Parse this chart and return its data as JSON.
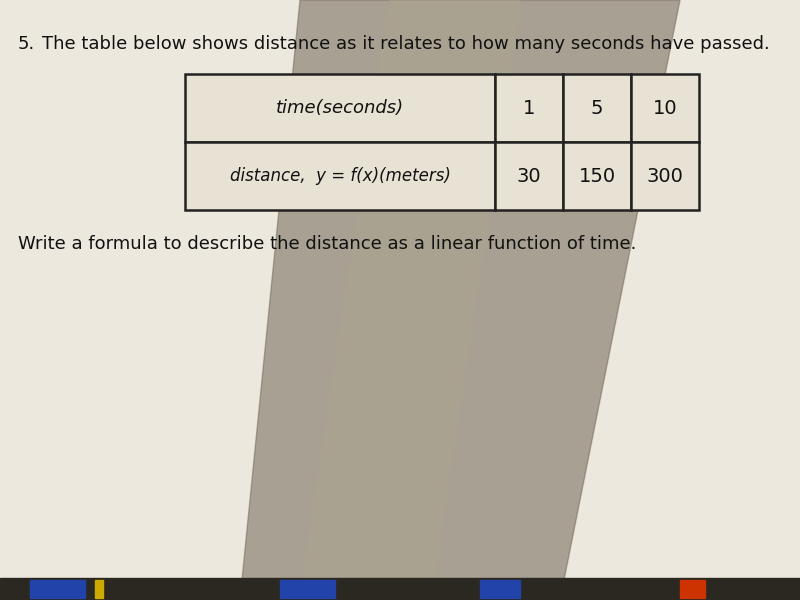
{
  "question_number": "5.",
  "question_text": "   The table below shows distance as it relates to how many seconds have passed.",
  "follow_up_text": "Write a formula to describe the distance as a linear function of time.",
  "row1_header": "time(seconds)",
  "row1_values": [
    "1",
    "5",
    "10"
  ],
  "row2_header": "distance,  y = f(x)(meters)",
  "row2_values": [
    "30",
    "150",
    "300"
  ],
  "bg_color": "#ede8de",
  "shadow_color": "#7a7060",
  "text_color": "#111111",
  "table_border_color": "#222222",
  "cell_bg": "#e8e2d4",
  "fig_width": 8.0,
  "fig_height": 6.0,
  "dpi": 100,
  "bottom_strip_color": "#1a1a2e"
}
